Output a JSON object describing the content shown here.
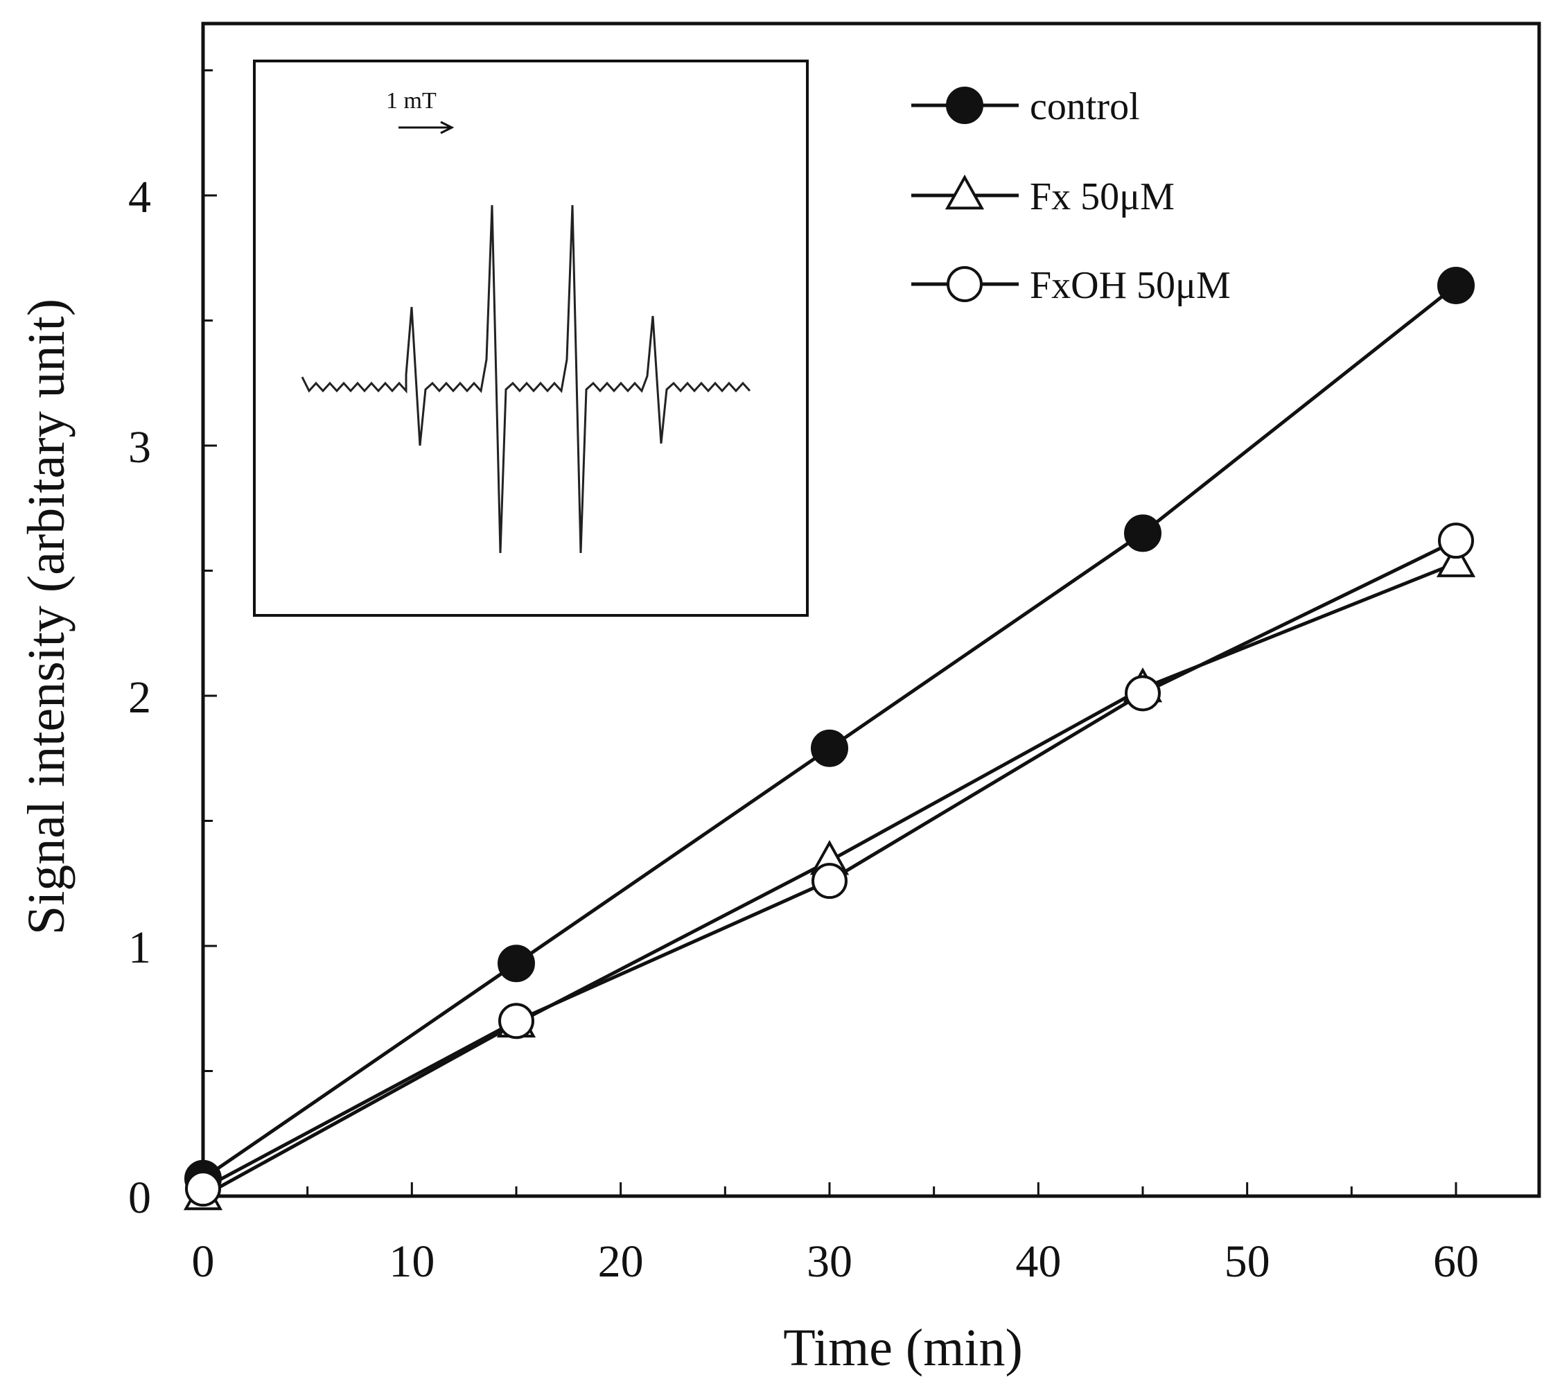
{
  "chart_data": {
    "type": "line",
    "title": "",
    "xlabel": "Time (min)",
    "ylabel": "Signal intensity (arbitary unit)",
    "xlim": [
      0,
      64
    ],
    "ylim": [
      0,
      4.8
    ],
    "xticks": [
      0,
      10,
      20,
      30,
      40,
      50,
      60
    ],
    "xminor": [
      5,
      15,
      25,
      35,
      45,
      55
    ],
    "yticks": [
      0,
      1,
      2,
      3,
      4
    ],
    "yminor": [
      0.5,
      1.5,
      2.5,
      3.5,
      4.5
    ],
    "grid": false,
    "legend_position": "top-right",
    "series": [
      {
        "name": "control",
        "marker": "filled-circle",
        "x": [
          0,
          15,
          30,
          45,
          60
        ],
        "y": [
          0.07,
          0.93,
          1.79,
          2.65,
          3.64
        ]
      },
      {
        "name": "Fx 50μM",
        "marker": "open-triangle",
        "x": [
          0,
          15,
          30,
          45,
          60
        ],
        "y": [
          0.0,
          0.69,
          1.34,
          2.03,
          2.53
        ]
      },
      {
        "name": "FxOH 50μM",
        "marker": "open-circle",
        "x": [
          0,
          15,
          30,
          45,
          60
        ],
        "y": [
          0.03,
          0.7,
          1.26,
          2.01,
          2.62
        ]
      }
    ],
    "inset": {
      "description": "ESR spectrum (4-line signal)",
      "scale_label": "1 mT"
    }
  }
}
